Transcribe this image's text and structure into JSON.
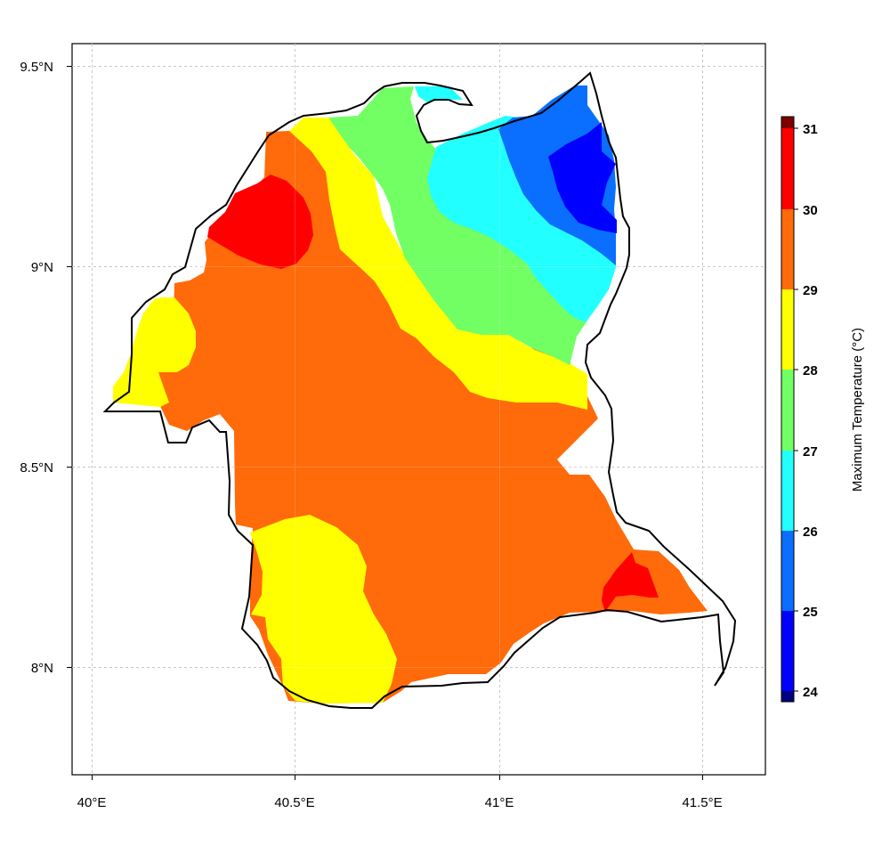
{
  "map": {
    "x_tick_labels": [
      "40°E",
      "40.5°E",
      "41°E",
      "41.5°E"
    ],
    "y_tick_labels": [
      "9.5°N",
      "9°N",
      "8.5°N",
      "8°N"
    ],
    "x_ticks": [
      40.0,
      40.5,
      41.0,
      41.5
    ],
    "y_ticks": [
      9.5,
      9.0,
      8.5,
      8.0
    ],
    "lon_range": [
      39.95,
      41.65
    ],
    "lat_range": [
      7.73,
      9.56
    ],
    "gridlines": true,
    "basemap": "none"
  },
  "legend": {
    "title": "Maximum Temperature (°C)",
    "labels": [
      "31",
      "30",
      "29",
      "28",
      "27",
      "26",
      "25",
      "24"
    ],
    "levels": [
      24,
      25,
      26,
      27,
      28,
      29,
      30,
      31
    ],
    "placement": "right",
    "bands": [
      {
        "range": "<24",
        "color": "#000080"
      },
      {
        "range": "24-25",
        "color": "#0000ff"
      },
      {
        "range": "25-26",
        "color": "#0a6eff"
      },
      {
        "range": "26-27",
        "color": "#22ffff"
      },
      {
        "range": "27-28",
        "color": "#72ff64"
      },
      {
        "range": "28-29",
        "color": "#ffff00"
      },
      {
        "range": "29-30",
        "color": "#ff6a0a"
      },
      {
        "range": "30-31",
        "color": "#ff0000"
      },
      {
        "range": ">31",
        "color": "#800000"
      }
    ]
  },
  "regions": [
    {
      "name": "background",
      "level": "29-30",
      "color": "#ff6a0a"
    },
    {
      "name": "northeast-gradient",
      "levels": [
        "24-25",
        "25-26",
        "26-27",
        "27-28",
        "28-29"
      ]
    },
    {
      "name": "northwest-hotspot",
      "level": "30-31",
      "color": "#ff0000"
    },
    {
      "name": "west-cool-patch",
      "level": "28-29",
      "color": "#ffff00"
    },
    {
      "name": "south-cool-patch",
      "level": "28-29",
      "color": "#ffff00"
    },
    {
      "name": "southeast-hotspot",
      "level": "30-31",
      "color": "#ff0000"
    }
  ],
  "colors": {
    "boundary": "#000000",
    "grid": "#c8c8c8",
    "frame": "#000000"
  }
}
